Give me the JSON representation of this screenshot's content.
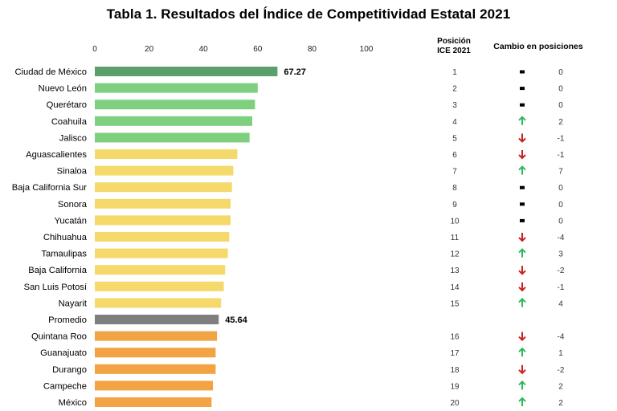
{
  "title": "Tabla 1. Resultados del Índice de Competitividad Estatal 2021",
  "headers": {
    "position_line1": "Posición",
    "position_line2": "ICE 2021",
    "change": "Cambio en posiciones"
  },
  "colors": {
    "top": "#5aa06a",
    "green": "#7ed07e",
    "yellow": "#f5d96b",
    "gray": "#7f7f7f",
    "orange": "#f2a444",
    "arrow_up": "#2eb85c",
    "arrow_down": "#cc1f1f",
    "no_change": "#000000"
  },
  "chart_data": {
    "type": "bar",
    "orientation": "horizontal",
    "title": "Tabla 1. Resultados del Índice de Competitividad Estatal 2021",
    "xlim": [
      0,
      100
    ],
    "ticks": [
      0,
      20,
      40,
      60,
      80,
      100
    ],
    "categories": [
      "Ciudad de México",
      "Nuevo León",
      "Querétaro",
      "Coahuila",
      "Jalisco",
      "Aguascalientes",
      "Sinaloa",
      "Baja California Sur",
      "Sonora",
      "Yucatán",
      "Chihuahua",
      "Tamaulipas",
      "Baja California",
      "San Luis Potosí",
      "Nayarit",
      "Promedio",
      "Quintana Roo",
      "Guanajuato",
      "Durango",
      "Campeche",
      "México"
    ],
    "values": [
      67.27,
      60,
      59,
      58,
      57,
      52.5,
      51,
      50.5,
      50,
      50,
      49.5,
      49,
      48,
      47.5,
      46.5,
      45.64,
      45,
      44.5,
      44.5,
      43.5,
      43
    ],
    "color_group": [
      "top",
      "green",
      "green",
      "green",
      "green",
      "yellow",
      "yellow",
      "yellow",
      "yellow",
      "yellow",
      "yellow",
      "yellow",
      "yellow",
      "yellow",
      "yellow",
      "gray",
      "orange",
      "orange",
      "orange",
      "orange",
      "orange"
    ],
    "value_labels": [
      "67.27",
      "",
      "",
      "",
      "",
      "",
      "",
      "",
      "",
      "",
      "",
      "",
      "",
      "",
      "",
      "45.64",
      "",
      "",
      "",
      "",
      ""
    ],
    "positions": [
      "1",
      "2",
      "3",
      "4",
      "5",
      "6",
      "7",
      "8",
      "9",
      "10",
      "11",
      "12",
      "13",
      "14",
      "15",
      "",
      "16",
      "17",
      "18",
      "19",
      "20"
    ],
    "change_direction": [
      "none",
      "none",
      "none",
      "up",
      "down",
      "down",
      "up",
      "none",
      "none",
      "none",
      "down",
      "up",
      "down",
      "down",
      "up",
      "",
      "down",
      "up",
      "down",
      "up",
      "up"
    ],
    "change_values": [
      "0",
      "0",
      "0",
      "2",
      "-1",
      "-1",
      "7",
      "0",
      "0",
      "0",
      "-4",
      "3",
      "-2",
      "-1",
      "4",
      "",
      "-4",
      "1",
      "-2",
      "2",
      "2"
    ]
  }
}
